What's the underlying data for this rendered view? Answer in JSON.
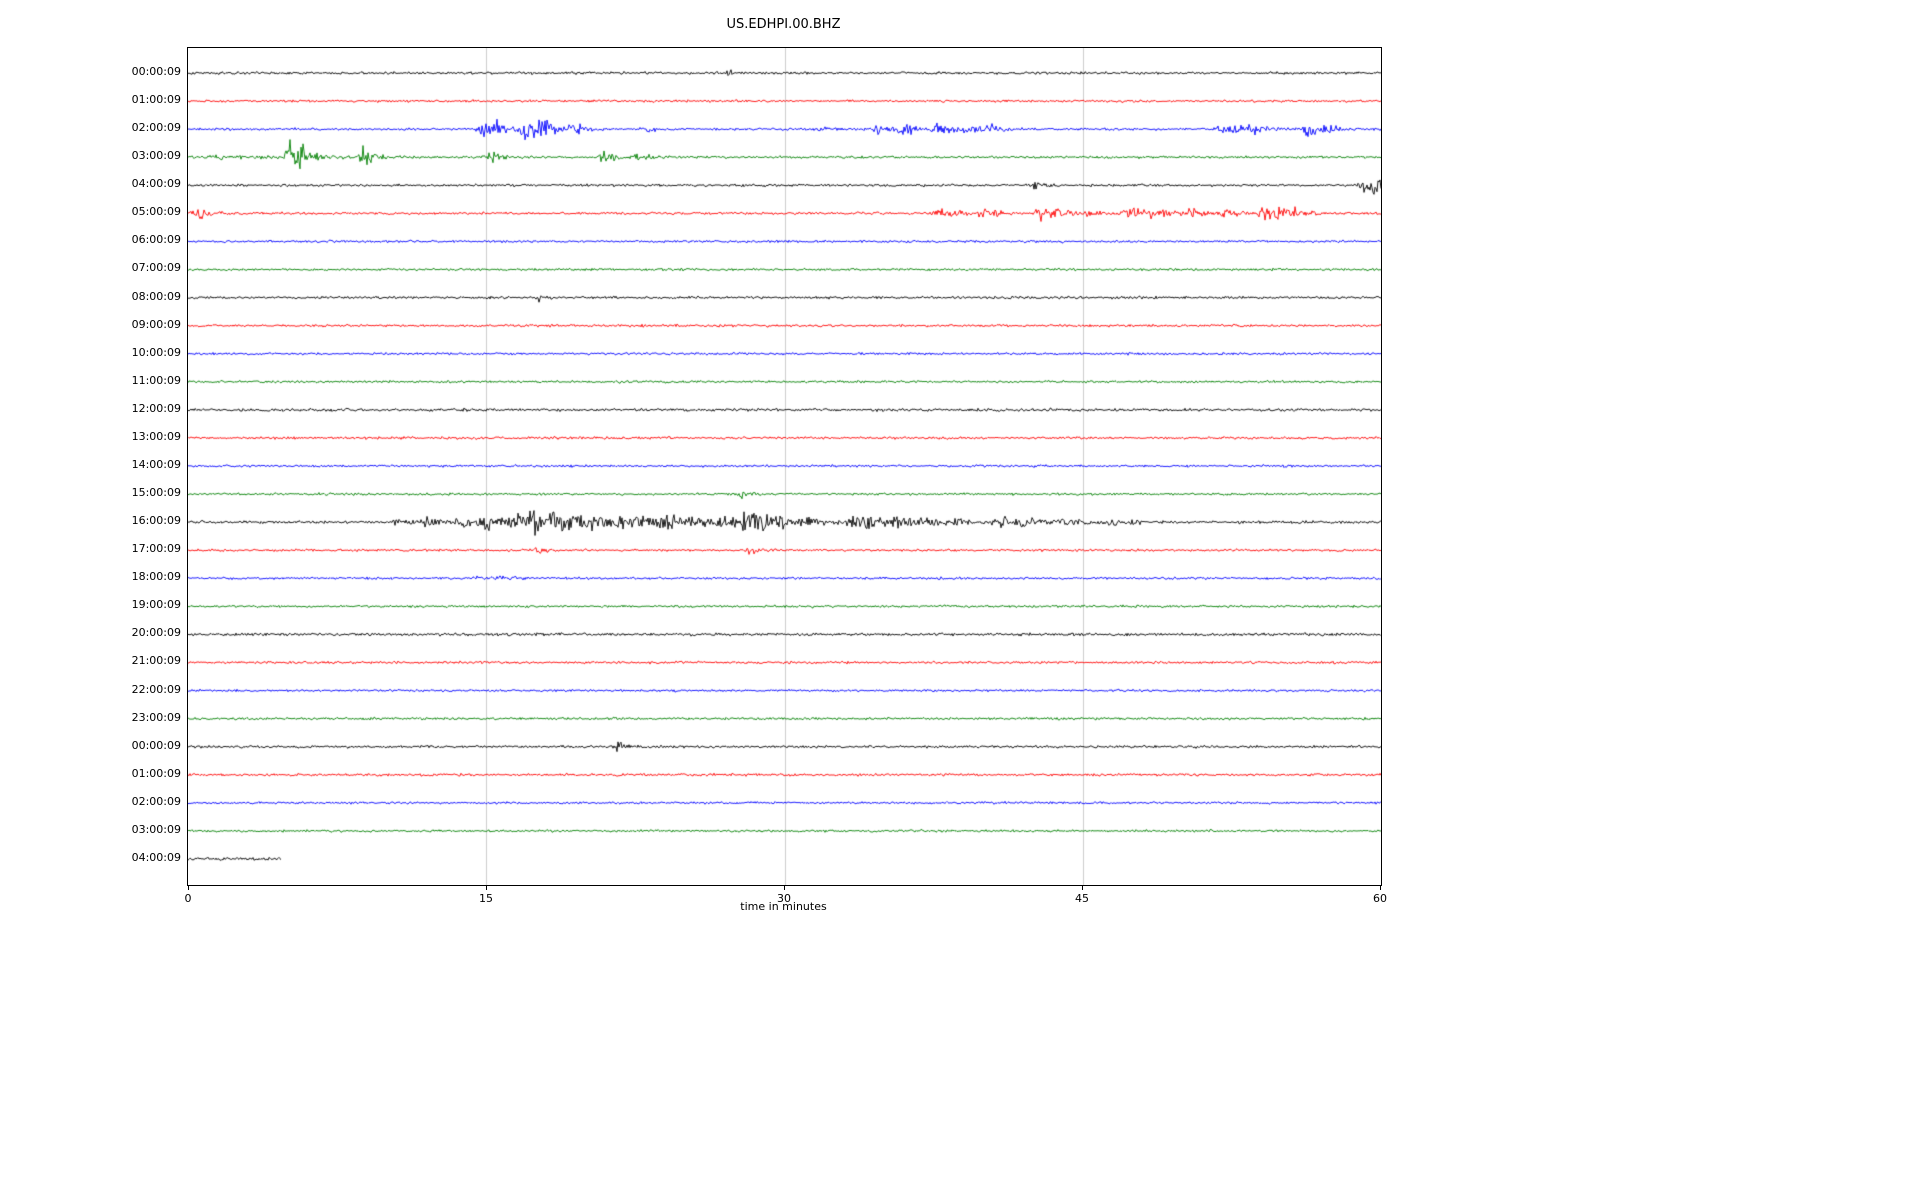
{
  "title": "US.EDHPI.00.BHZ",
  "x_axis": {
    "label": "time in minutes",
    "min": 0,
    "max": 60,
    "ticks": [
      "0",
      "15",
      "30",
      "45",
      "60"
    ],
    "tick_values": [
      0,
      15,
      30,
      45,
      60
    ],
    "gridlines": [
      15,
      30,
      45
    ],
    "grid_color": "#cccccc"
  },
  "colors": {
    "cycle": [
      "#000000",
      "#ff0000",
      "#0000ff",
      "#008000"
    ],
    "axis": "#000000",
    "background": "#ffffff"
  },
  "chart_data": {
    "type": "line",
    "subtype": "helicorder-dayplot",
    "title": "US.EDHPI.00.BHZ",
    "xlabel": "time in minutes",
    "xlim": [
      0,
      60
    ],
    "minutes_per_row": 60,
    "legend": "none",
    "grid": "vertical-only",
    "rows": [
      {
        "label": "00:00:09",
        "color": "#000000",
        "base": 1.9,
        "events": [
          [
            27.2,
            0.3,
            3
          ]
        ]
      },
      {
        "label": "01:00:09",
        "color": "#ff0000",
        "base": 1.7,
        "events": []
      },
      {
        "label": "02:00:09",
        "color": "#0000ff",
        "base": 1.7,
        "events": [
          [
            14.8,
            0.5,
            16
          ],
          [
            15.5,
            0.4,
            10
          ],
          [
            16.9,
            1.2,
            12
          ],
          [
            17.6,
            0.8,
            10
          ],
          [
            19.3,
            0.5,
            6
          ],
          [
            23.0,
            0.4,
            4
          ],
          [
            31.8,
            0.5,
            5
          ],
          [
            34.6,
            1.2,
            7
          ],
          [
            36.0,
            0.8,
            7
          ],
          [
            37.6,
            0.9,
            7
          ],
          [
            39.2,
            0.7,
            6
          ],
          [
            40.2,
            0.5,
            5
          ],
          [
            52.0,
            1.2,
            8
          ],
          [
            53.2,
            0.8,
            7
          ],
          [
            56.3,
            0.4,
            12
          ],
          [
            57.2,
            0.5,
            6
          ]
        ]
      },
      {
        "label": "03:00:09",
        "color": "#008000",
        "base": 1.8,
        "events": [
          [
            1.5,
            2.0,
            3
          ],
          [
            5.1,
            0.6,
            22
          ],
          [
            5.6,
            0.5,
            14
          ],
          [
            8.8,
            0.5,
            18
          ],
          [
            15.2,
            0.5,
            7
          ],
          [
            20.9,
            0.7,
            8
          ],
          [
            22.6,
            0.5,
            6
          ]
        ]
      },
      {
        "label": "04:00:09",
        "color": "#000000",
        "base": 1.8,
        "events": [
          [
            42.7,
            0.3,
            10
          ],
          [
            59.2,
            0.5,
            14
          ],
          [
            59.6,
            0.3,
            10
          ]
        ]
      },
      {
        "label": "05:00:09",
        "color": "#ff0000",
        "base": 1.7,
        "events": [
          [
            0.4,
            0.5,
            11
          ],
          [
            37.8,
            1.5,
            6
          ],
          [
            40.0,
            0.8,
            5
          ],
          [
            42.8,
            0.3,
            16
          ],
          [
            43.6,
            0.8,
            6
          ],
          [
            45.2,
            0.8,
            5
          ],
          [
            47.3,
            1.5,
            7
          ],
          [
            48.6,
            1.0,
            6
          ],
          [
            50.3,
            0.8,
            6
          ],
          [
            52.2,
            0.6,
            5
          ],
          [
            54.1,
            0.6,
            12
          ],
          [
            55.0,
            0.6,
            8
          ],
          [
            55.8,
            0.5,
            6
          ]
        ]
      },
      {
        "label": "06:00:09",
        "color": "#0000ff",
        "base": 1.7,
        "events": []
      },
      {
        "label": "07:00:09",
        "color": "#008000",
        "base": 1.7,
        "events": []
      },
      {
        "label": "08:00:09",
        "color": "#000000",
        "base": 1.8,
        "events": [
          [
            17.7,
            0.3,
            6
          ]
        ]
      },
      {
        "label": "09:00:09",
        "color": "#ff0000",
        "base": 1.8,
        "events": []
      },
      {
        "label": "10:00:09",
        "color": "#0000ff",
        "base": 1.7,
        "events": []
      },
      {
        "label": "11:00:09",
        "color": "#008000",
        "base": 1.7,
        "events": []
      },
      {
        "label": "12:00:09",
        "color": "#000000",
        "base": 2.0,
        "events": []
      },
      {
        "label": "13:00:09",
        "color": "#ff0000",
        "base": 1.8,
        "events": []
      },
      {
        "label": "14:00:09",
        "color": "#0000ff",
        "base": 1.7,
        "events": []
      },
      {
        "label": "15:00:09",
        "color": "#008000",
        "base": 1.7,
        "events": [
          [
            27.9,
            0.3,
            9
          ]
        ]
      },
      {
        "label": "16:00:09",
        "color": "#000000",
        "base": 1.9,
        "events": [
          [
            10.5,
            1.5,
            4
          ],
          [
            12.0,
            1.0,
            5
          ],
          [
            13.5,
            1.0,
            7
          ],
          [
            15.0,
            1.2,
            9
          ],
          [
            16.3,
            1.0,
            10
          ],
          [
            17.3,
            1.2,
            12
          ],
          [
            18.4,
            1.0,
            10
          ],
          [
            19.5,
            1.2,
            9
          ],
          [
            20.6,
            1.0,
            8
          ],
          [
            21.8,
            1.0,
            9
          ],
          [
            22.8,
            1.2,
            8
          ],
          [
            24.0,
            1.0,
            7
          ],
          [
            25.5,
            1.0,
            6
          ],
          [
            26.8,
            0.8,
            7
          ],
          [
            28.0,
            0.5,
            20
          ],
          [
            28.6,
            0.8,
            12
          ],
          [
            29.8,
            1.0,
            7
          ],
          [
            31.2,
            1.0,
            5
          ],
          [
            33.4,
            0.6,
            14
          ],
          [
            34.3,
            0.8,
            7
          ],
          [
            35.5,
            1.0,
            6
          ],
          [
            37.0,
            1.0,
            5
          ],
          [
            38.5,
            1.0,
            4
          ],
          [
            40.8,
            0.8,
            7
          ],
          [
            42.0,
            1.0,
            5
          ],
          [
            44.0,
            1.5,
            4
          ],
          [
            46.5,
            1.0,
            3
          ]
        ]
      },
      {
        "label": "17:00:09",
        "color": "#ff0000",
        "base": 1.7,
        "events": [
          [
            17.6,
            0.4,
            5
          ],
          [
            28.2,
            0.4,
            7
          ],
          [
            57.6,
            0.3,
            4
          ]
        ]
      },
      {
        "label": "18:00:09",
        "color": "#0000ff",
        "base": 1.7,
        "events": [
          [
            14.5,
            1.5,
            3
          ]
        ]
      },
      {
        "label": "19:00:09",
        "color": "#008000",
        "base": 1.7,
        "events": []
      },
      {
        "label": "20:00:09",
        "color": "#000000",
        "base": 2.0,
        "events": []
      },
      {
        "label": "21:00:09",
        "color": "#ff0000",
        "base": 1.8,
        "events": []
      },
      {
        "label": "22:00:09",
        "color": "#0000ff",
        "base": 1.7,
        "events": []
      },
      {
        "label": "23:00:09",
        "color": "#008000",
        "base": 1.7,
        "events": []
      },
      {
        "label": "00:00:09",
        "color": "#000000",
        "base": 1.8,
        "events": [
          [
            21.6,
            0.3,
            9
          ]
        ]
      },
      {
        "label": "01:00:09",
        "color": "#ff0000",
        "base": 1.8,
        "events": []
      },
      {
        "label": "02:00:09",
        "color": "#0000ff",
        "base": 1.7,
        "events": []
      },
      {
        "label": "03:00:09",
        "color": "#008000",
        "base": 1.7,
        "events": []
      },
      {
        "label": "04:00:09",
        "color": "#000000",
        "base": 2.2,
        "events": [],
        "tmax": 4.7
      }
    ]
  }
}
